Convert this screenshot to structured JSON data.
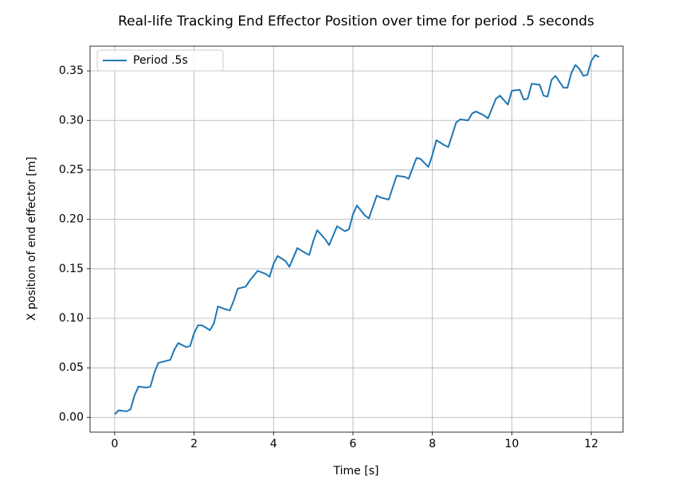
{
  "chart_data": {
    "type": "line",
    "title": "Real-life Tracking End Effector Position over time for period .5 seconds",
    "x_label": "Time [s]",
    "y_label": "X position of end effector [m]",
    "x": [
      0,
      0.1,
      0.3,
      0.4,
      0.5,
      0.6,
      0.8,
      0.9,
      1.0,
      1.1,
      1.3,
      1.4,
      1.5,
      1.6,
      1.8,
      1.9,
      2.0,
      2.1,
      2.2,
      2.4,
      2.5,
      2.6,
      2.8,
      2.9,
      3.0,
      3.1,
      3.3,
      3.4,
      3.6,
      3.8,
      3.9,
      4.0,
      4.1,
      4.3,
      4.4,
      4.6,
      4.8,
      4.9,
      5.0,
      5.1,
      5.3,
      5.4,
      5.6,
      5.8,
      5.9,
      6.0,
      6.1,
      6.3,
      6.4,
      6.6,
      6.7,
      6.9,
      7.0,
      7.1,
      7.3,
      7.4,
      7.6,
      7.7,
      7.9,
      8.0,
      8.1,
      8.3,
      8.4,
      8.6,
      8.7,
      8.9,
      9.0,
      9.1,
      9.3,
      9.4,
      9.6,
      9.7,
      9.9,
      10.0,
      10.2,
      10.3,
      10.4,
      10.5,
      10.7,
      10.8,
      10.9,
      11.0,
      11.1,
      11.2,
      11.3,
      11.4,
      11.5,
      11.6,
      11.7,
      11.8,
      11.9,
      12.0,
      12.1,
      12.2
    ],
    "series": [
      {
        "name": "Period .5s",
        "color": "#1f77b4",
        "values": [
          0.003,
          0.007,
          0.006,
          0.008,
          0.022,
          0.031,
          0.03,
          0.031,
          0.045,
          0.055,
          0.057,
          0.058,
          0.068,
          0.075,
          0.071,
          0.072,
          0.085,
          0.093,
          0.093,
          0.088,
          0.095,
          0.112,
          0.109,
          0.108,
          0.118,
          0.13,
          0.132,
          0.138,
          0.148,
          0.145,
          0.142,
          0.155,
          0.163,
          0.158,
          0.152,
          0.171,
          0.166,
          0.164,
          0.178,
          0.189,
          0.18,
          0.174,
          0.193,
          0.188,
          0.19,
          0.205,
          0.214,
          0.204,
          0.201,
          0.224,
          0.222,
          0.22,
          0.232,
          0.244,
          0.243,
          0.241,
          0.262,
          0.261,
          0.253,
          0.265,
          0.28,
          0.275,
          0.273,
          0.298,
          0.301,
          0.3,
          0.307,
          0.309,
          0.305,
          0.302,
          0.322,
          0.325,
          0.316,
          0.33,
          0.331,
          0.321,
          0.322,
          0.337,
          0.336,
          0.325,
          0.324,
          0.341,
          0.345,
          0.339,
          0.333,
          0.333,
          0.348,
          0.356,
          0.352,
          0.345,
          0.346,
          0.36,
          0.366,
          0.364
        ]
      }
    ],
    "xlim": [
      -0.62,
      12.8
    ],
    "ylim": [
      -0.015,
      0.375
    ],
    "xticks": [
      0,
      2,
      4,
      6,
      8,
      10,
      12
    ],
    "yticks": [
      {
        "value": 0,
        "label": "0.00"
      },
      {
        "value": 0.05,
        "label": "0.05"
      },
      {
        "value": 0.1,
        "label": "0.10"
      },
      {
        "value": 0.15,
        "label": "0.15"
      },
      {
        "value": 0.2,
        "label": "0.20"
      },
      {
        "value": 0.25,
        "label": "0.25"
      },
      {
        "value": 0.3,
        "label": "0.30"
      },
      {
        "value": 0.35,
        "label": "0.35"
      }
    ],
    "grid": true,
    "legend": "upper-left"
  }
}
